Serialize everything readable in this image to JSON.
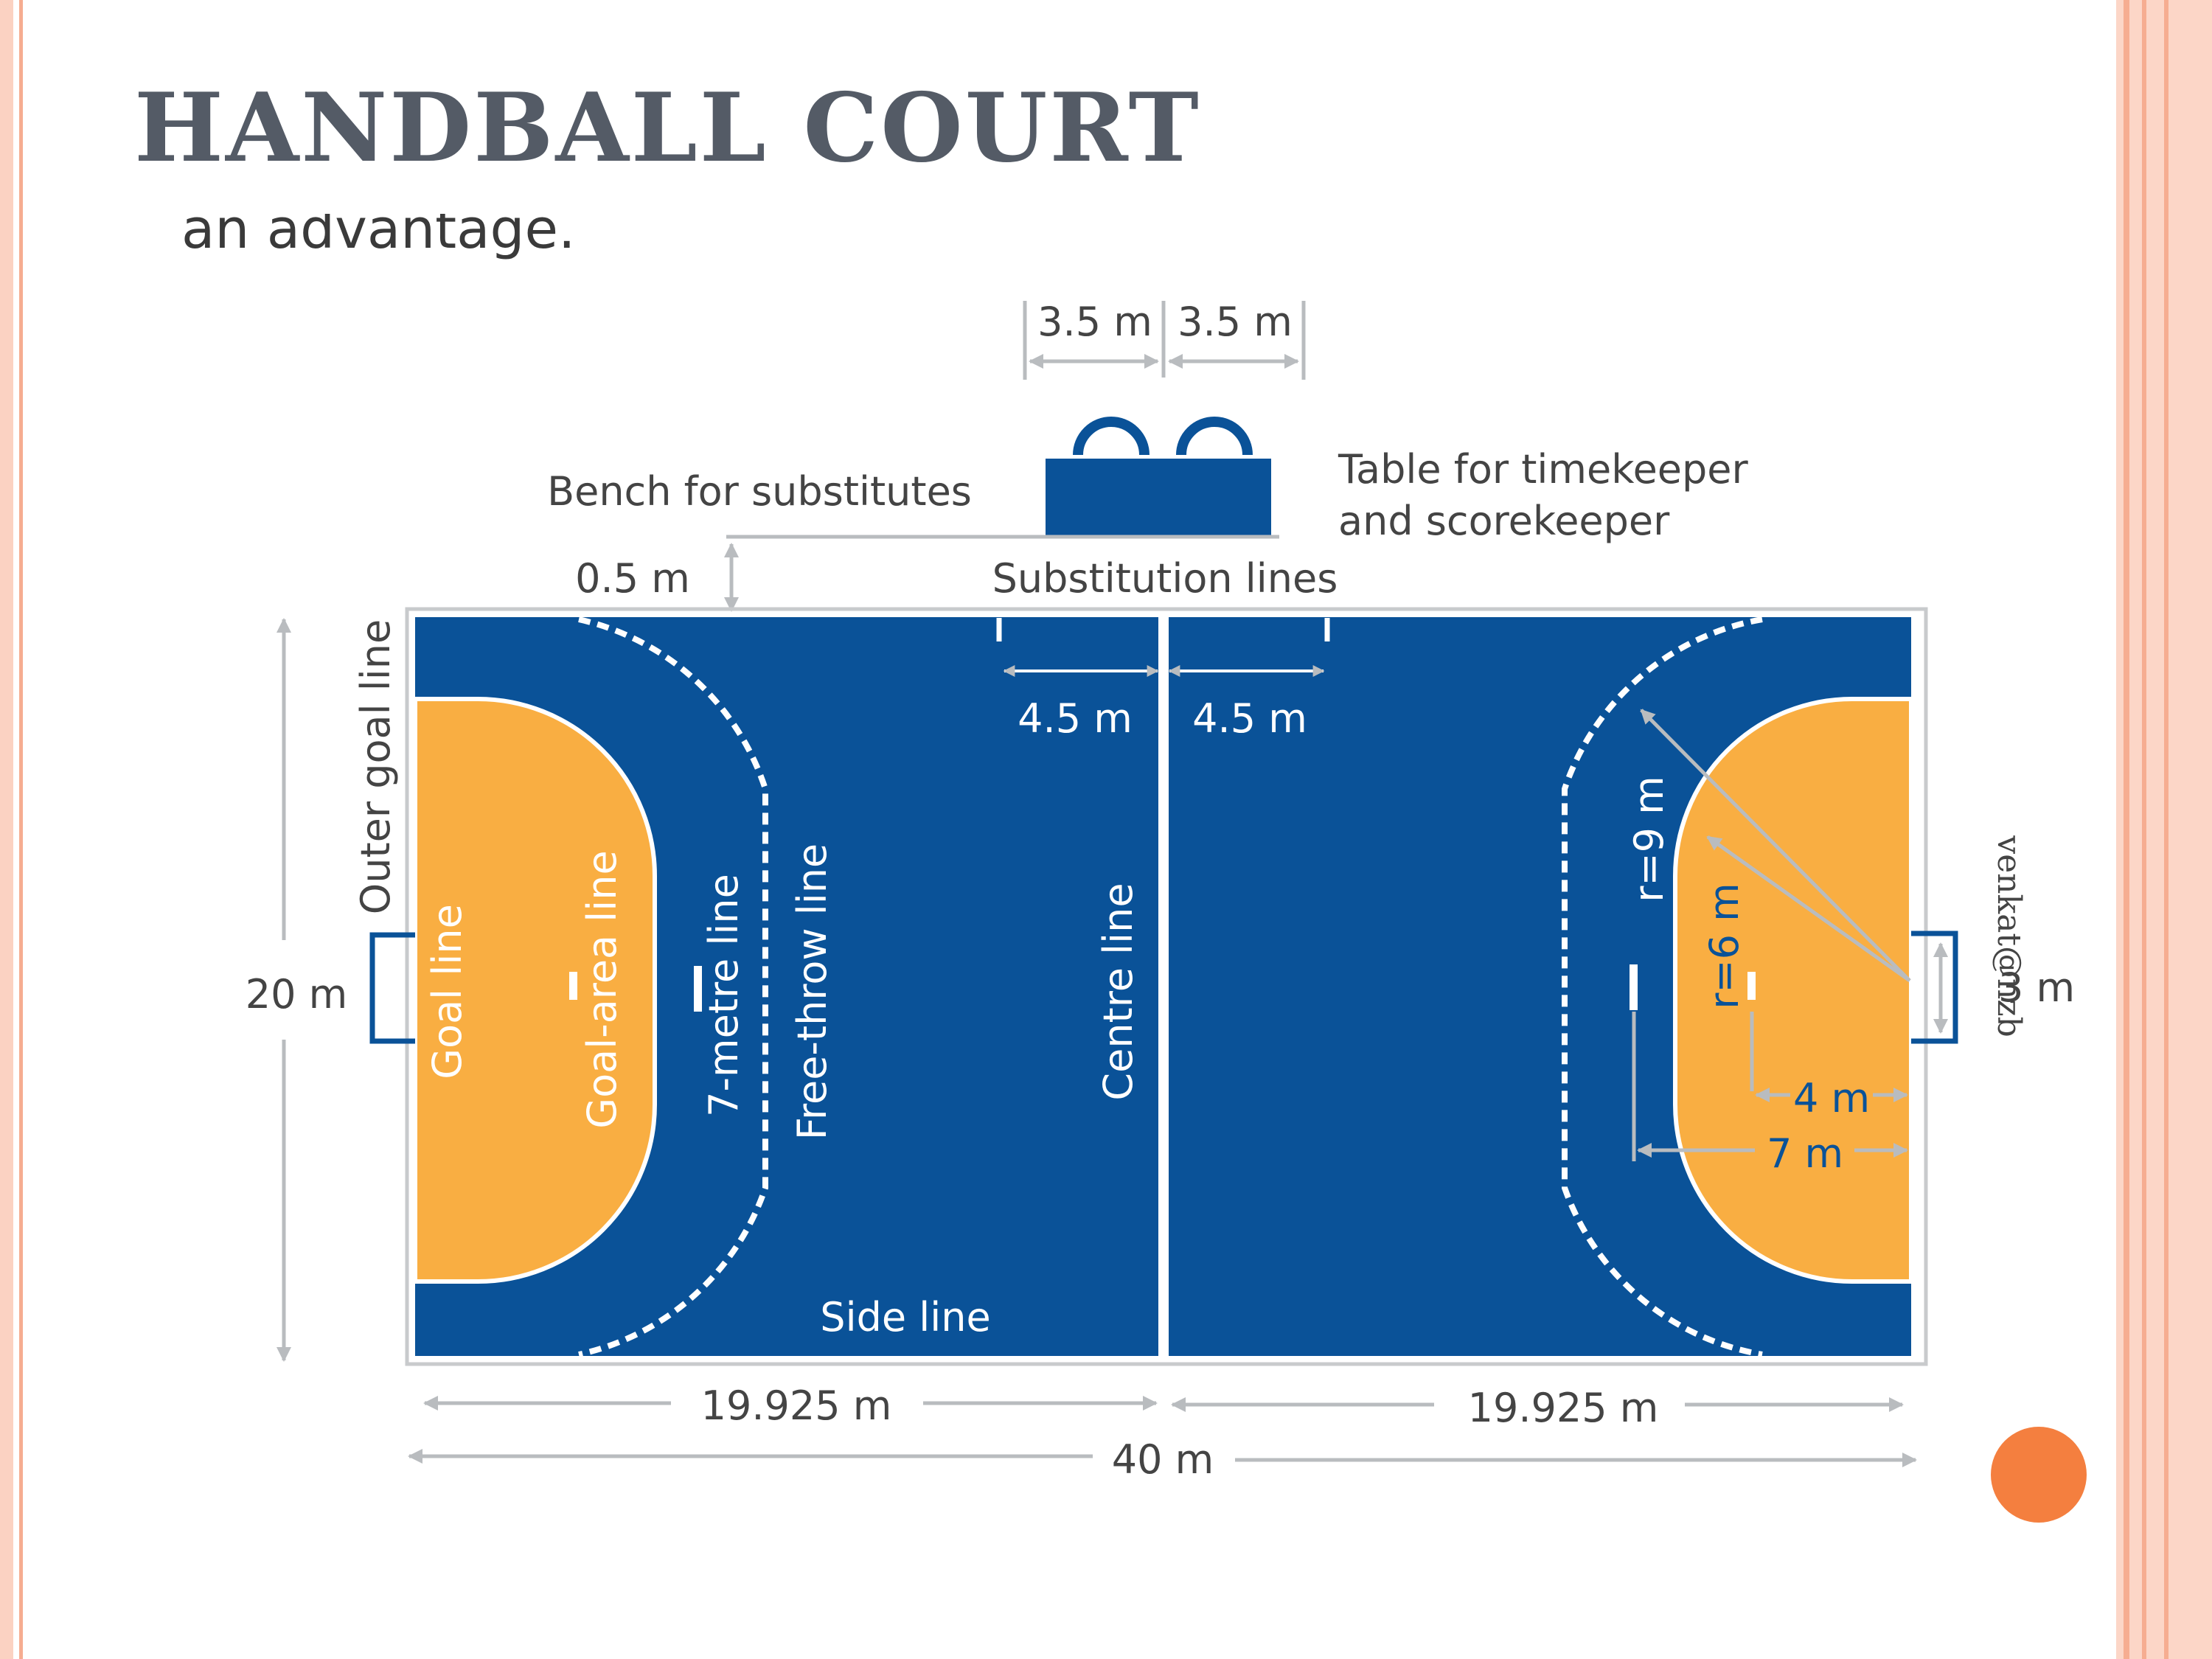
{
  "slide": {
    "title": "HANDBALL COURT",
    "cut_text": "an advantage.",
    "credit": "venkat@nzb",
    "colors": {
      "court_blue": "#0a5298",
      "goal_area_orange": "#f9ae42",
      "title_gray": "#545b66",
      "dimension_gray": "#b9bcbf",
      "border_salmon": "#f6ad91",
      "accent_orange": "#f47f3f"
    }
  },
  "diagram": {
    "labels": {
      "half_width_left": "3.5 m",
      "half_width_right": "3.5 m",
      "bench": "Bench for substitutes",
      "table_line1": "Table for timekeeper",
      "table_line2": "and scorekeeper",
      "bench_offset": "0.5 m",
      "substitution_lines": "Substitution lines",
      "sub_left": "4.5 m",
      "sub_right": "4.5 m",
      "outer_goal_line": "Outer goal line",
      "goal_line": "Goal line",
      "goal_area_line": "Goal-area line",
      "seven_metre_line": "7-metre line",
      "free_throw_line": "Free-throw line",
      "centre_line": "Centre line",
      "side_line": "Side line",
      "court_width": "20 m",
      "goal_width": "3 m",
      "r9": "r=9 m",
      "r6": "r=6 m",
      "four_m": "4 m",
      "seven_m": "7 m",
      "half_left": "19.925 m",
      "half_right": "19.925 m",
      "total_length": "40 m"
    }
  }
}
